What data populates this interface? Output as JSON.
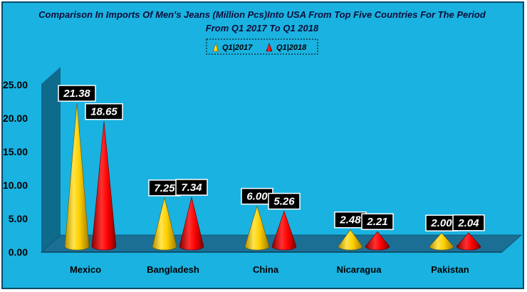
{
  "chart_data": {
    "type": "bar",
    "style": "3d-cone",
    "title_lines": [
      "Comparison In Imports Of Men's Jeans (Million Pcs)Into USA From Top Five Countries For The Period",
      "From Q1 2017 To Q1 2018"
    ],
    "categories": [
      "Mexico",
      "Bangladesh",
      "China",
      "Nicaragua",
      "Pakistan"
    ],
    "series": [
      {
        "name": "Q1|2017",
        "values": [
          21.38,
          7.25,
          6.0,
          2.48,
          2.0
        ],
        "color": "#ffd700"
      },
      {
        "name": "Q1|2018",
        "values": [
          18.65,
          7.34,
          5.26,
          2.21,
          2.04
        ],
        "color": "#ff0000"
      }
    ],
    "value_labels": [
      [
        "21.38",
        "7.25",
        "6.00",
        "2.48",
        "2.00"
      ],
      [
        "18.65",
        "7.34",
        "5.26",
        "2.21",
        "2.04"
      ]
    ],
    "yticks": [
      "0.00",
      "5.00",
      "10.00",
      "15.00",
      "20.00",
      "25.00"
    ],
    "ylim": [
      0,
      25
    ],
    "xlabel": "",
    "ylabel": "",
    "legend_position": "top-center",
    "grid": false,
    "colors": {
      "background": "#1ab2e0",
      "wall": "#0f6b8c",
      "floor": "#1b6f95",
      "label_box": "#000000"
    }
  }
}
